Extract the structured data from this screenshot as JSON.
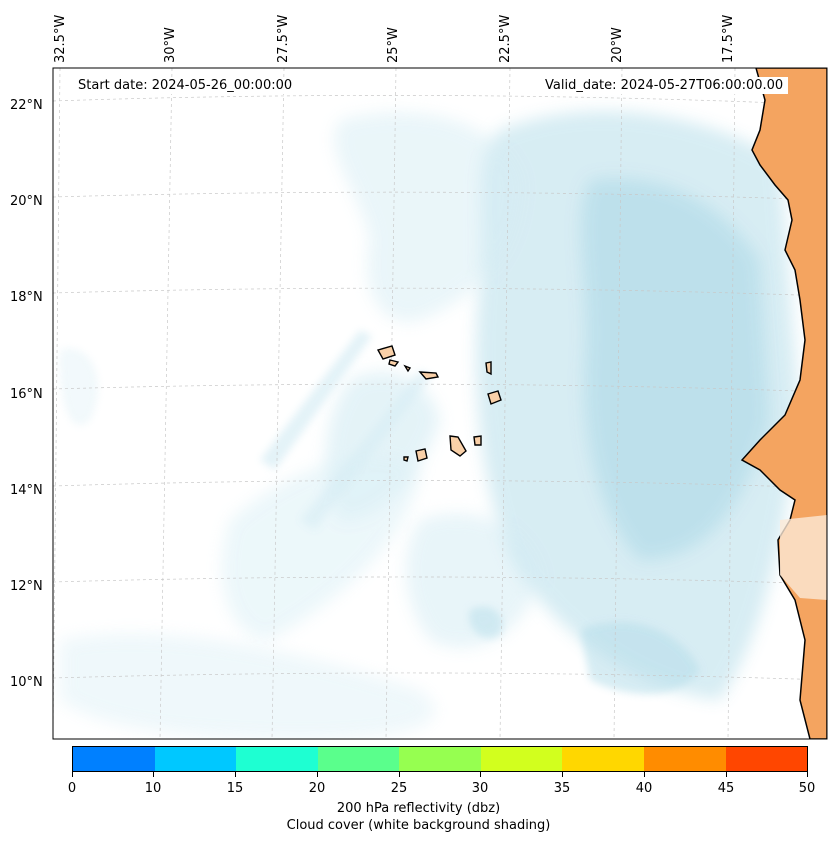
{
  "header": {
    "start_date": "Start date: 2024-05-26_00:00:00",
    "valid_date": "Valid_date: 2024-05-27T06:00:00.00"
  },
  "axes": {
    "longitude_labels": [
      "32.5°W",
      "30°W",
      "27.5°W",
      "25°W",
      "22.5°W",
      "20°W",
      "17.5°W"
    ],
    "latitude_labels": [
      "22°N",
      "20°N",
      "18°N",
      "16°N",
      "14°N",
      "12°N",
      "10°N"
    ]
  },
  "colorbar": {
    "ticks": [
      "0",
      "10",
      "15",
      "20",
      "25",
      "30",
      "35",
      "40",
      "45",
      "50"
    ],
    "colors": [
      "#0080ff",
      "#00c8ff",
      "#1effd2",
      "#5aff8c",
      "#96ff50",
      "#d2ff1e",
      "#ffd700",
      "#ff8c00",
      "#ff4600"
    ],
    "title_line1": "200 hPa reflectivity (dbz)",
    "title_line2": "Cloud cover (white background shading)"
  },
  "colors": {
    "land": "#f4a460",
    "island": "#f9d0a8",
    "cloud": "#a9d8e6",
    "grid": "#c8c8c8"
  }
}
